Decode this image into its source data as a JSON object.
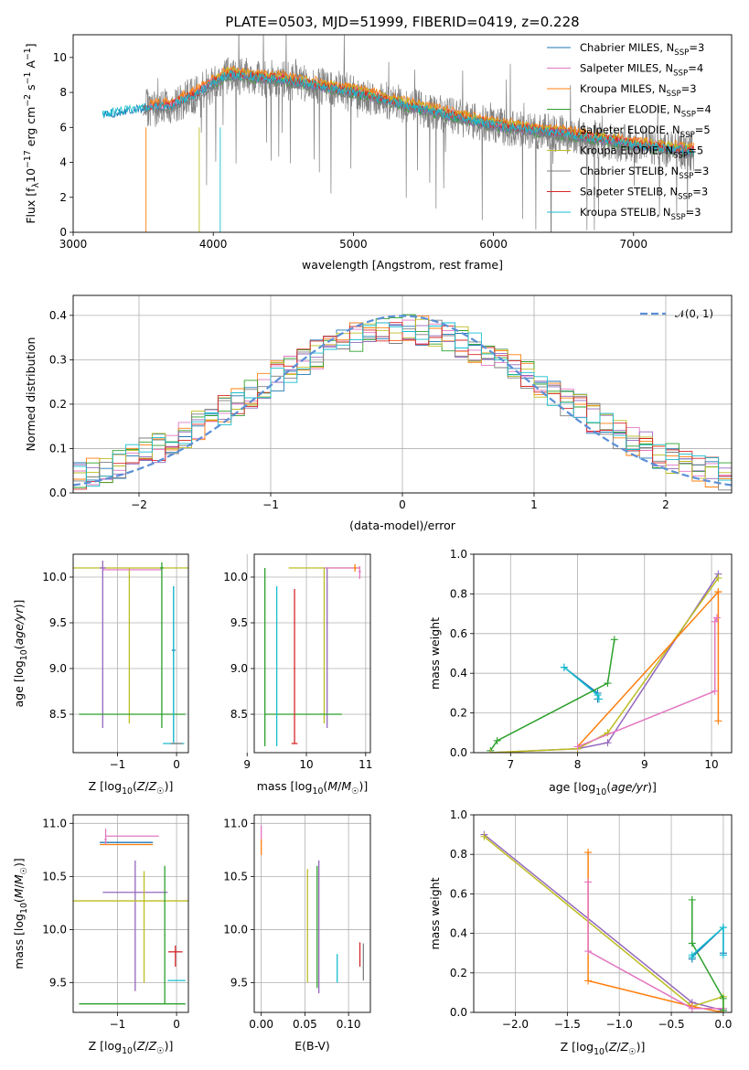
{
  "figure_title": "PLATE=0503, MJD=51999, FIBERID=0419, z=0.228",
  "colors": {
    "Chabrier MILES": "#1f77b4",
    "Salpeter MILES": "#e377c2",
    "Kroupa MILES": "#ff7f0e",
    "Chabrier ELODIE": "#2ca02c",
    "Salpeter ELODIE": "#9467bd",
    "Kroupa ELODIE": "#bcbd22",
    "Chabrier STELIB": "#7f7f7f",
    "Salpeter STELIB": "#d62728",
    "Kroupa STELIB": "#17becf",
    "data": "#808080",
    "normal": "#5b8fd6"
  },
  "chart_data": [
    {
      "type": "line",
      "xlabel": "wavelength [Angstrom, rest frame]",
      "ylabel": "Flux [f_λ10^-17 erg cm^-2 s^-1 A^-1]",
      "xlim": [
        3000,
        7700
      ],
      "ylim": [
        0,
        11.3
      ],
      "xticks": [
        "3000",
        "4000",
        "5000",
        "6000",
        "7000"
      ],
      "yticks": [
        "0",
        "2",
        "4",
        "6",
        "8",
        "10"
      ],
      "grid": false,
      "legend_position": "top-right",
      "legend": [
        {
          "label": "Chabrier MILES, N",
          "sub": "SSP",
          "rest": "=3"
        },
        {
          "label": "Salpeter MILES, N",
          "sub": "SSP",
          "rest": "=4"
        },
        {
          "label": "Kroupa MILES, N",
          "sub": "SSP",
          "rest": "=3"
        },
        {
          "label": "Chabrier ELODIE, N",
          "sub": "SSP",
          "rest": "=4"
        },
        {
          "label": "Salpeter ELODIE, N",
          "sub": "SSP",
          "rest": "=5"
        },
        {
          "label": "Kroupa ELODIE, N",
          "sub": "SSP",
          "rest": "=5"
        },
        {
          "label": "Chabrier STELIB, N",
          "sub": "SSP",
          "rest": "=3"
        },
        {
          "label": "Salpeter STELIB, N",
          "sub": "SSP",
          "rest": "=3"
        },
        {
          "label": "Kroupa STELIB, N",
          "sub": "SSP",
          "rest": "=3"
        }
      ],
      "model_range_angstrom": [
        3210,
        7430
      ],
      "data_range_angstrom": [
        3520,
        7430
      ],
      "continuum_shape": {
        "x": [
          3210,
          3400,
          3700,
          3900,
          4100,
          4500,
          5000,
          5500,
          6000,
          6500,
          7000,
          7430
        ],
        "y": [
          6.7,
          7.0,
          7.2,
          8.0,
          9.0,
          8.7,
          8.0,
          7.0,
          6.1,
          5.6,
          5.0,
          4.6
        ]
      }
    },
    {
      "type": "line",
      "xlabel": "(data-model)/error",
      "ylabel": "Normed distribution",
      "xlim": [
        -2.5,
        2.5
      ],
      "ylim": [
        0,
        0.445
      ],
      "xticks": [
        "−2",
        "−1",
        "0",
        "1",
        "2"
      ],
      "yticks": [
        "0.0",
        "0.1",
        "0.2",
        "0.3",
        "0.4"
      ],
      "grid": true,
      "legend_position": "top-right",
      "legend": [
        {
          "label": "𝒩(0, 1)"
        }
      ],
      "bins": {
        "start": -2.5,
        "width": 0.1,
        "count": 50
      },
      "reference_curve": "normal(0,1)"
    },
    {
      "type": "scatter",
      "xlabel": "Z [log10(Z/Z☉)]",
      "ylabel": "age [log10(age/yr)]",
      "xlim": [
        -1.75,
        0.2
      ],
      "ylim": [
        8.08,
        10.25
      ],
      "xticks": [
        {
          "v": -1,
          "t": "−1"
        },
        {
          "v": 0,
          "t": "0"
        }
      ],
      "yticks": [
        {
          "v": 8.5,
          "t": "8.5"
        },
        {
          "v": 9.0,
          "t": "9.0"
        },
        {
          "v": 9.5,
          "t": "9.5"
        },
        {
          "v": 10.0,
          "t": "10.0"
        }
      ],
      "points": [
        {
          "s": "Kroupa ELODIE",
          "x": -0.8,
          "y": 10.1,
          "xerr": 1.9,
          "yerr": [
            1.7,
            0.0
          ]
        },
        {
          "s": "Salpeter MILES",
          "x": -0.75,
          "y": 10.08,
          "xerr": 0.5,
          "yerr": [
            0,
            0
          ]
        },
        {
          "s": "Salpeter ELODIE",
          "x": -1.25,
          "y": 10.1,
          "xerr": 0.05,
          "yerr": [
            1.75,
            0.08
          ]
        },
        {
          "s": "Chabrier ELODIE",
          "x": -0.25,
          "y": 10.1,
          "xerr": 0.03,
          "yerr": [
            1.75,
            0.06
          ]
        },
        {
          "s": "Chabrier ELODIE",
          "x": -0.75,
          "y": 8.5,
          "xerr": 0.9,
          "yerr": [
            0,
            0
          ]
        },
        {
          "s": "Chabrier MILES",
          "x": -0.05,
          "y": 9.2,
          "xerr": 0.03,
          "yerr": [
            1.0,
            0.7
          ]
        },
        {
          "s": "Kroupa STELIB",
          "x": -0.05,
          "y": 8.18,
          "xerr": 0.18,
          "yerr": [
            0,
            1.72
          ]
        },
        {
          "s": "Chabrier STELIB",
          "x": 0.0,
          "y": 8.18,
          "xerr": 0.1,
          "yerr": [
            0,
            0
          ]
        }
      ]
    },
    {
      "type": "scatter",
      "xlabel": "mass [log10(M/M☉)]",
      "ylabel": "",
      "xlim": [
        9.12,
        11.08
      ],
      "ylim": [
        8.08,
        10.25
      ],
      "xticks": [
        {
          "v": 9,
          "t": "9"
        },
        {
          "v": 10,
          "t": "10"
        },
        {
          "v": 11,
          "t": "11"
        }
      ],
      "yticks": [
        {
          "v": 8.5,
          "t": "8.5"
        },
        {
          "v": 9.0,
          "t": "9.0"
        },
        {
          "v": 9.5,
          "t": "9.5"
        },
        {
          "v": 10.0,
          "t": "10.0"
        }
      ],
      "points": [
        {
          "s": "Kroupa ELODIE",
          "x": 10.3,
          "y": 10.1,
          "xerr": 0.6,
          "yerr": [
            1.7,
            0
          ]
        },
        {
          "s": "Salpeter ELODIE",
          "x": 10.35,
          "y": 9.5,
          "xerr": 0.01,
          "yerr": [
            1.15,
            0.6
          ]
        },
        {
          "s": "Salpeter MILES",
          "x": 10.6,
          "y": 10.1,
          "xerr": 0.3,
          "yerr": [
            0,
            0
          ]
        },
        {
          "s": "Salpeter MILES",
          "x": 10.9,
          "y": 10.06,
          "xerr": 0.02,
          "yerr": [
            0.08,
            0.06
          ]
        },
        {
          "s": "Kroupa MILES",
          "x": 10.82,
          "y": 10.1,
          "xerr": 0.02,
          "yerr": [
            0.04,
            0.04
          ]
        },
        {
          "s": "Chabrier ELODIE",
          "x": 9.95,
          "y": 8.5,
          "xerr": 0.65,
          "yerr": [
            0,
            0
          ]
        },
        {
          "s": "Chabrier ELODIE",
          "x": 9.3,
          "y": 9.0,
          "xerr": 0.01,
          "yerr": [
            0.85,
            1.1
          ]
        },
        {
          "s": "Kroupa STELIB",
          "x": 9.5,
          "y": 9.0,
          "xerr": 0.01,
          "yerr": [
            0.85,
            0.9
          ]
        },
        {
          "s": "Salpeter STELIB",
          "x": 9.8,
          "y": 9.0,
          "xerr": 0.01,
          "yerr": [
            0.82,
            0.87
          ]
        },
        {
          "s": "Salpeter STELIB",
          "x": 9.8,
          "y": 8.18,
          "xerr": 0.05,
          "yerr": [
            0,
            0
          ]
        }
      ]
    },
    {
      "type": "line",
      "xlabel": "age [log10(age/yr)]",
      "ylabel": "mass weight",
      "xlim": [
        6.45,
        10.3
      ],
      "ylim": [
        0,
        1.0
      ],
      "xticks": [
        {
          "v": 7,
          "t": "7"
        },
        {
          "v": 8,
          "t": "8"
        },
        {
          "v": 9,
          "t": "9"
        },
        {
          "v": 10,
          "t": "10"
        }
      ],
      "yticks": [
        {
          "v": 0,
          "t": "0.0"
        },
        {
          "v": 0.2,
          "t": "0.2"
        },
        {
          "v": 0.4,
          "t": "0.4"
        },
        {
          "v": 0.6,
          "t": "0.6"
        },
        {
          "v": 0.8,
          "t": "0.8"
        },
        {
          "v": 1.0,
          "t": "1.0"
        }
      ],
      "series": [
        {
          "s": "Chabrier MILES",
          "x": [
            7.8,
            8.3,
            8.3
          ],
          "y": [
            0.43,
            0.3,
            0.27
          ]
        },
        {
          "s": "Kroupa STELIB",
          "x": [
            7.8,
            8.3,
            8.32
          ],
          "y": [
            0.43,
            0.29,
            0.27
          ]
        },
        {
          "s": "Chabrier ELODIE",
          "x": [
            6.7,
            6.8,
            8.45,
            8.55
          ],
          "y": [
            0.01,
            0.06,
            0.35,
            0.57
          ]
        },
        {
          "s": "Salpeter ELODIE",
          "x": [
            6.7,
            8.0,
            8.45,
            10.1
          ],
          "y": [
            0.0,
            0.02,
            0.05,
            0.9
          ]
        },
        {
          "s": "Kroupa ELODIE",
          "x": [
            6.7,
            8.0,
            8.45,
            10.1
          ],
          "y": [
            0.0,
            0.02,
            0.1,
            0.88
          ]
        },
        {
          "s": "Kroupa MILES",
          "x": [
            8.0,
            10.1,
            10.1,
            10.1
          ],
          "y": [
            0.03,
            0.81,
            0.16,
            0.81
          ]
        },
        {
          "s": "Salpeter MILES",
          "x": [
            8.0,
            10.05,
            10.05,
            10.08
          ],
          "y": [
            0.03,
            0.31,
            0.66,
            0.68
          ]
        }
      ]
    },
    {
      "type": "scatter",
      "xlabel": "Z [log10(Z/Z☉)]",
      "ylabel": "mass [log10(M/M☉)]",
      "xlim": [
        -1.75,
        0.2
      ],
      "ylim": [
        9.22,
        11.08
      ],
      "xticks": [
        {
          "v": -1,
          "t": "−1"
        },
        {
          "v": 0,
          "t": "0"
        }
      ],
      "yticks": [
        {
          "v": 9.5,
          "t": "9.5"
        },
        {
          "v": 10.0,
          "t": "10.0"
        },
        {
          "v": 10.5,
          "t": "10.5"
        },
        {
          "v": 11.0,
          "t": "11.0"
        }
      ],
      "points": [
        {
          "s": "Salpeter MILES",
          "x": -0.75,
          "y": 10.88,
          "xerr": 0.45,
          "yerr": [
            0,
            0
          ]
        },
        {
          "s": "Chabrier MILES",
          "x": -0.85,
          "y": 10.82,
          "xerr": 0.45,
          "yerr": [
            0,
            0
          ]
        },
        {
          "s": "Kroupa MILES",
          "x": -0.85,
          "y": 10.8,
          "xerr": 0.45,
          "yerr": [
            0,
            0
          ]
        },
        {
          "s": "Salpeter MILES",
          "x": -1.2,
          "y": 10.85,
          "xerr": 0.02,
          "yerr": [
            0.05,
            0.1
          ]
        },
        {
          "s": "Salpeter ELODIE",
          "x": -0.7,
          "y": 10.35,
          "xerr": 0.55,
          "yerr": [
            0.93,
            0.3
          ]
        },
        {
          "s": "Kroupa ELODIE",
          "x": -0.55,
          "y": 10.27,
          "xerr": 1.2,
          "yerr": [
            0.77,
            0.28
          ]
        },
        {
          "s": "Chabrier ELODIE",
          "x": -0.75,
          "y": 9.3,
          "xerr": 0.9,
          "yerr": [
            0,
            0
          ]
        },
        {
          "s": "Chabrier ELODIE",
          "x": -0.2,
          "y": 9.95,
          "xerr": 0.01,
          "yerr": [
            0.65,
            0.65
          ]
        },
        {
          "s": "Salpeter STELIB",
          "x": -0.02,
          "y": 9.79,
          "xerr": 0.12,
          "yerr": [
            0.14,
            0.06
          ]
        },
        {
          "s": "Kroupa STELIB",
          "x": 0.0,
          "y": 9.52,
          "xerr": 0.15,
          "yerr": [
            0,
            0
          ]
        }
      ]
    },
    {
      "type": "scatter",
      "xlabel": "E(B-V)",
      "ylabel": "",
      "xlim": [
        -0.008,
        0.125
      ],
      "ylim": [
        9.22,
        11.08
      ],
      "xticks": [
        {
          "v": 0,
          "t": "0.00"
        },
        {
          "v": 0.05,
          "t": "0.05"
        },
        {
          "v": 0.1,
          "t": "0.10"
        }
      ],
      "yticks": [
        {
          "v": 9.5,
          "t": "9.5"
        },
        {
          "v": 10.0,
          "t": "10.0"
        },
        {
          "v": 10.5,
          "t": "10.5"
        },
        {
          "v": 11.0,
          "t": "11.0"
        }
      ],
      "points": [
        {
          "s": "Salpeter MILES",
          "x": 0.0,
          "y": 10.88,
          "xerr": 0,
          "yerr": [
            0.05,
            0.1
          ]
        },
        {
          "s": "Kroupa MILES",
          "x": 0.0,
          "y": 10.8,
          "xerr": 0,
          "yerr": [
            0.1,
            0.05
          ]
        },
        {
          "s": "Kroupa ELODIE",
          "x": 0.053,
          "y": 10.0,
          "xerr": 0,
          "yerr": [
            0.5,
            0.57
          ]
        },
        {
          "s": "Salpeter ELODIE",
          "x": 0.066,
          "y": 10.0,
          "xerr": 0,
          "yerr": [
            0.6,
            0.65
          ]
        },
        {
          "s": "Chabrier ELODIE",
          "x": 0.064,
          "y": 9.95,
          "xerr": 0,
          "yerr": [
            0.5,
            0.65
          ]
        },
        {
          "s": "Kroupa STELIB",
          "x": 0.087,
          "y": 9.65,
          "xerr": 0,
          "yerr": [
            0.15,
            0.12
          ]
        },
        {
          "s": "Salpeter STELIB",
          "x": 0.113,
          "y": 9.75,
          "xerr": 0,
          "yerr": [
            0.1,
            0.13
          ]
        },
        {
          "s": "Chabrier STELIB",
          "x": 0.117,
          "y": 9.7,
          "xerr": 0,
          "yerr": [
            0.18,
            0.17
          ]
        }
      ]
    },
    {
      "type": "line",
      "xlabel": "Z [log10(Z/Z☉)]",
      "ylabel": "mass weight",
      "xlim": [
        -2.4,
        0.08
      ],
      "ylim": [
        0,
        1.0
      ],
      "xticks": [
        {
          "v": -2,
          "t": "−2.0"
        },
        {
          "v": -1.5,
          "t": "−1.5"
        },
        {
          "v": -1,
          "t": "−1.0"
        },
        {
          "v": -0.5,
          "t": "−0.5"
        },
        {
          "v": 0,
          "t": "0.0"
        }
      ],
      "yticks": [
        {
          "v": 0,
          "t": "0.0"
        },
        {
          "v": 0.2,
          "t": "0.2"
        },
        {
          "v": 0.4,
          "t": "0.4"
        },
        {
          "v": 0.6,
          "t": "0.6"
        },
        {
          "v": 0.8,
          "t": "0.8"
        },
        {
          "v": 1.0,
          "t": "1.0"
        }
      ],
      "series": [
        {
          "s": "Salpeter ELODIE",
          "x": [
            -2.3,
            -0.3,
            0.0
          ],
          "y": [
            0.9,
            0.05,
            0.01
          ]
        },
        {
          "s": "Kroupa ELODIE",
          "x": [
            -2.3,
            -0.3,
            0.0,
            0.0
          ],
          "y": [
            0.89,
            0.03,
            0.08,
            0.0
          ]
        },
        {
          "s": "Kroupa MILES",
          "x": [
            -1.3,
            -1.3,
            -0.3,
            0.0
          ],
          "y": [
            0.81,
            0.16,
            0.03,
            0.0
          ]
        },
        {
          "s": "Salpeter MILES",
          "x": [
            -1.3,
            -1.3,
            -0.3,
            0.0
          ],
          "y": [
            0.66,
            0.31,
            0.02,
            0.02
          ]
        },
        {
          "s": "Chabrier ELODIE",
          "x": [
            -0.3,
            -0.3,
            0.0,
            0.0
          ],
          "y": [
            0.57,
            0.35,
            0.07,
            0.01
          ]
        },
        {
          "s": "Chabrier MILES",
          "x": [
            -0.3,
            -0.3,
            0.0,
            0.0
          ],
          "y": [
            0.27,
            0.28,
            0.43,
            0.3
          ]
        },
        {
          "s": "Kroupa STELIB",
          "x": [
            -0.3,
            -0.3,
            0.0,
            0.0
          ],
          "y": [
            0.28,
            0.29,
            0.43,
            0.29
          ]
        }
      ]
    }
  ]
}
